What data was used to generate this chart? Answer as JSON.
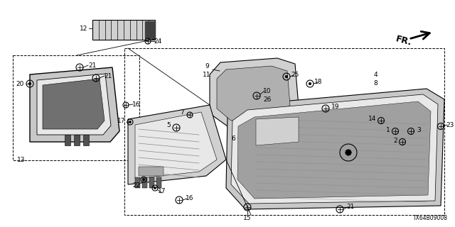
{
  "title": "TX64B09008",
  "background_color": "#ffffff",
  "figsize": [
    6.4,
    3.2
  ],
  "dpi": 100
}
